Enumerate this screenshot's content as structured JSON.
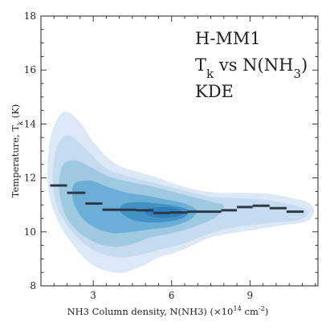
{
  "chart_data": {
    "type": "contour-kde",
    "annotation": {
      "lines": [
        "H-MM1",
        "T_k vs N(NH_3)",
        "KDE"
      ]
    },
    "xlabel": "NH3 Column density, N(NH3) (×10^14 cm^-2)",
    "ylabel": "Temperature, T_k (K)",
    "xlim": [
      1.0,
      11.6
    ],
    "ylim": [
      8,
      18
    ],
    "x_ticks": [
      3,
      6,
      9
    ],
    "y_ticks": [
      8,
      10,
      12,
      14,
      16,
      18
    ],
    "x_minor_step": 0.5,
    "y_minor_step": 0.5,
    "kde_levels": [
      {
        "level": 1,
        "color": "#dbe8f6",
        "boundary": [
          [
            1.45,
            13.8
          ],
          [
            1.7,
            14.3
          ],
          [
            2.0,
            14.45
          ],
          [
            2.5,
            14.05
          ],
          [
            3.0,
            13.35
          ],
          [
            3.5,
            12.8
          ],
          [
            4.0,
            12.45
          ],
          [
            4.8,
            12.2
          ],
          [
            5.5,
            12.0
          ],
          [
            6.2,
            11.75
          ],
          [
            7.0,
            11.55
          ],
          [
            7.8,
            11.45
          ],
          [
            8.8,
            11.45
          ],
          [
            9.8,
            11.4
          ],
          [
            10.6,
            11.25
          ],
          [
            11.2,
            11.1
          ],
          [
            11.45,
            10.8
          ],
          [
            11.2,
            10.4
          ],
          [
            10.3,
            10.25
          ],
          [
            9.3,
            10.1
          ],
          [
            8.3,
            9.95
          ],
          [
            7.5,
            9.8
          ],
          [
            6.8,
            9.5
          ],
          [
            6.2,
            9.25
          ],
          [
            5.5,
            9.05
          ],
          [
            4.9,
            8.75
          ],
          [
            4.2,
            8.5
          ],
          [
            3.5,
            8.55
          ],
          [
            2.8,
            8.9
          ],
          [
            2.2,
            9.55
          ],
          [
            1.7,
            10.3
          ],
          [
            1.35,
            11.2
          ],
          [
            1.25,
            12.2
          ],
          [
            1.3,
            13.1
          ]
        ]
      },
      {
        "level": 2,
        "color": "#c6dbef",
        "boundary": [
          [
            1.6,
            13.1
          ],
          [
            1.9,
            13.55
          ],
          [
            2.3,
            13.45
          ],
          [
            2.9,
            12.9
          ],
          [
            3.5,
            12.35
          ],
          [
            4.2,
            12.1
          ],
          [
            5.0,
            11.9
          ],
          [
            5.8,
            11.7
          ],
          [
            6.6,
            11.5
          ],
          [
            7.5,
            11.3
          ],
          [
            8.5,
            11.25
          ],
          [
            9.5,
            11.2
          ],
          [
            10.4,
            11.05
          ],
          [
            11.0,
            10.9
          ],
          [
            11.25,
            10.7
          ],
          [
            10.9,
            10.45
          ],
          [
            10.0,
            10.35
          ],
          [
            9.0,
            10.25
          ],
          [
            8.0,
            10.1
          ],
          [
            7.2,
            9.85
          ],
          [
            6.4,
            9.55
          ],
          [
            5.6,
            9.35
          ],
          [
            4.8,
            9.15
          ],
          [
            4.0,
            9.05
          ],
          [
            3.3,
            9.2
          ],
          [
            2.6,
            9.6
          ],
          [
            2.0,
            10.25
          ],
          [
            1.6,
            11.0
          ],
          [
            1.45,
            11.9
          ],
          [
            1.5,
            12.6
          ]
        ]
      },
      {
        "level": 3,
        "color": "#9ecae1",
        "boundary": [
          [
            1.85,
            12.5
          ],
          [
            2.3,
            12.65
          ],
          [
            2.9,
            12.4
          ],
          [
            3.6,
            12.05
          ],
          [
            4.4,
            11.85
          ],
          [
            5.2,
            11.7
          ],
          [
            6.0,
            11.5
          ],
          [
            6.8,
            11.3
          ],
          [
            7.6,
            11.1
          ],
          [
            8.0,
            10.95
          ],
          [
            7.7,
            10.55
          ],
          [
            6.9,
            10.2
          ],
          [
            6.0,
            9.95
          ],
          [
            5.2,
            9.8
          ],
          [
            4.5,
            9.55
          ],
          [
            3.8,
            9.45
          ],
          [
            3.1,
            9.6
          ],
          [
            2.5,
            9.95
          ],
          [
            2.0,
            10.5
          ],
          [
            1.75,
            11.2
          ],
          [
            1.7,
            11.9
          ]
        ]
      },
      {
        "level": 4,
        "color": "#6baed6",
        "boundary": [
          [
            2.3,
            11.8
          ],
          [
            2.9,
            11.9
          ],
          [
            3.6,
            11.65
          ],
          [
            4.3,
            11.45
          ],
          [
            5.0,
            11.35
          ],
          [
            5.8,
            11.2
          ],
          [
            6.5,
            11.05
          ],
          [
            6.95,
            10.8
          ],
          [
            6.7,
            10.45
          ],
          [
            6.0,
            10.2
          ],
          [
            5.2,
            10.1
          ],
          [
            4.5,
            10.0
          ],
          [
            3.8,
            9.95
          ],
          [
            3.2,
            10.1
          ],
          [
            2.7,
            10.4
          ],
          [
            2.35,
            10.85
          ],
          [
            2.2,
            11.35
          ]
        ]
      },
      {
        "level": 5,
        "color": "#4292c6",
        "boundary": [
          [
            4.2,
            11.05
          ],
          [
            4.8,
            11.1
          ],
          [
            5.5,
            11.05
          ],
          [
            6.2,
            10.95
          ],
          [
            6.65,
            10.8
          ],
          [
            6.5,
            10.55
          ],
          [
            6.0,
            10.4
          ],
          [
            5.3,
            10.35
          ],
          [
            4.7,
            10.4
          ],
          [
            4.3,
            10.55
          ],
          [
            4.0,
            10.8
          ]
        ]
      },
      {
        "level": 6,
        "color": "#2f7dbb",
        "boundary": [
          [
            5.1,
            10.85
          ],
          [
            5.6,
            10.92
          ],
          [
            6.1,
            10.88
          ],
          [
            6.45,
            10.75
          ],
          [
            6.25,
            10.58
          ],
          [
            5.7,
            10.52
          ],
          [
            5.2,
            10.58
          ],
          [
            5.0,
            10.72
          ]
        ]
      }
    ],
    "median_steps": [
      {
        "x_start": 1.35,
        "x_end": 2.0,
        "y": 11.72
      },
      {
        "x_start": 2.0,
        "x_end": 2.7,
        "y": 11.45
      },
      {
        "x_start": 2.7,
        "x_end": 3.35,
        "y": 11.05
      },
      {
        "x_start": 3.35,
        "x_end": 4.0,
        "y": 10.82
      },
      {
        "x_start": 4.0,
        "x_end": 4.65,
        "y": 10.82
      },
      {
        "x_start": 4.65,
        "x_end": 5.3,
        "y": 10.8
      },
      {
        "x_start": 5.3,
        "x_end": 5.95,
        "y": 10.7
      },
      {
        "x_start": 5.95,
        "x_end": 6.6,
        "y": 10.72
      },
      {
        "x_start": 6.6,
        "x_end": 7.3,
        "y": 10.75
      },
      {
        "x_start": 7.3,
        "x_end": 7.9,
        "y": 10.75
      },
      {
        "x_start": 7.9,
        "x_end": 8.5,
        "y": 10.8
      },
      {
        "x_start": 8.5,
        "x_end": 9.1,
        "y": 10.92
      },
      {
        "x_start": 9.1,
        "x_end": 9.75,
        "y": 10.97
      },
      {
        "x_start": 9.75,
        "x_end": 10.4,
        "y": 10.88
      },
      {
        "x_start": 10.4,
        "x_end": 11.05,
        "y": 10.75
      }
    ]
  }
}
